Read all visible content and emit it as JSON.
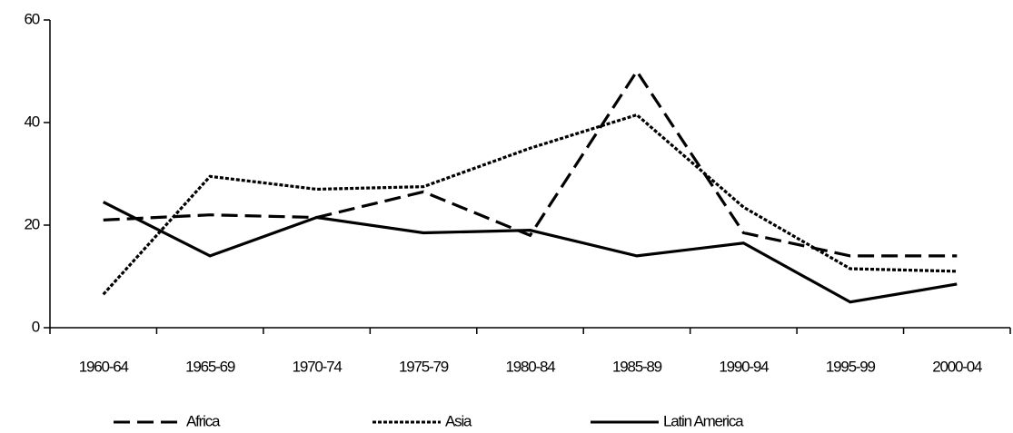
{
  "chart_data": {
    "type": "line",
    "categories": [
      "1960-64",
      "1965-69",
      "1970-74",
      "1975-79",
      "1980-84",
      "1985-89",
      "1990-94",
      "1995-99",
      "2000-04"
    ],
    "series": [
      {
        "name": "Africa",
        "color": "#000000",
        "dash": "18,8",
        "values": [
          21,
          22,
          21.5,
          26.5,
          18,
          50,
          18.5,
          14,
          14
        ]
      },
      {
        "name": "Asia",
        "color": "#000000",
        "dash": "4,2",
        "values": [
          6.5,
          29.5,
          27,
          27.5,
          35,
          41.5,
          23.5,
          11.5,
          11
        ]
      },
      {
        "name": "Latin America",
        "color": "#000000",
        "dash": "none",
        "values": [
          24.5,
          14,
          21.5,
          18.5,
          19,
          14,
          16.5,
          5,
          8.5
        ]
      }
    ],
    "ylim": [
      0,
      60
    ],
    "yticks": [
      0,
      20,
      40,
      60
    ],
    "legend": "bottom"
  }
}
